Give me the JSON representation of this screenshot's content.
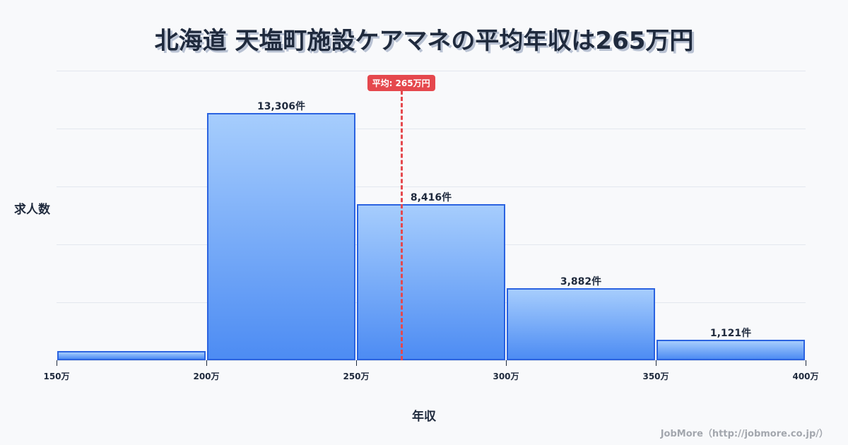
{
  "title": "北海道 天塩町施設ケアマネの平均年収は265万円",
  "axes": {
    "ylabel": "求人数",
    "xlabel": "年収"
  },
  "mean": {
    "label": "平均: 265万円",
    "value": 265
  },
  "credit": "JobMore（http://jobmore.co.jp/）",
  "colors": {
    "bar_top": "#a6cdfd",
    "bar_bottom": "#4d8cf3",
    "bar_border": "#2b63e0",
    "mean_line": "#e5484d",
    "title": "#1f2a3d",
    "background": "#f8f9fb"
  },
  "chart_data": {
    "type": "bar",
    "title": "北海道 天塩町施設ケアマネの平均年収は265万円",
    "xlabel": "年収",
    "ylabel": "求人数",
    "bin_edges": [
      150,
      200,
      250,
      300,
      350,
      400
    ],
    "tick_labels": [
      "150万",
      "200万",
      "250万",
      "300万",
      "350万",
      "400万"
    ],
    "categories": [
      "150-200万",
      "200-250万",
      "250-300万",
      "300-350万",
      "350-400万"
    ],
    "values": [
      500,
      13306,
      8416,
      3882,
      1121
    ],
    "value_labels": [
      "",
      "13,306件",
      "8,416件",
      "3,882件",
      "1,121件"
    ],
    "ylim": [
      0,
      15600
    ],
    "grid": true,
    "mean_line": {
      "x": 265,
      "label": "平均: 265万円"
    },
    "legend": null
  }
}
